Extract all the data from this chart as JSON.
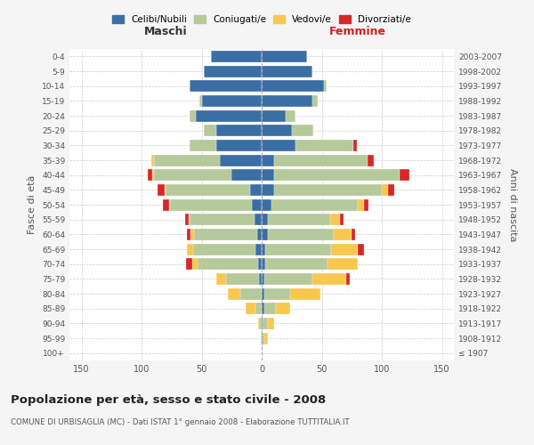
{
  "age_groups": [
    "100+",
    "95-99",
    "90-94",
    "85-89",
    "80-84",
    "75-79",
    "70-74",
    "65-69",
    "60-64",
    "55-59",
    "50-54",
    "45-49",
    "40-44",
    "35-39",
    "30-34",
    "25-29",
    "20-24",
    "15-19",
    "10-14",
    "5-9",
    "0-4"
  ],
  "birth_years": [
    "≤ 1907",
    "1908-1912",
    "1913-1917",
    "1918-1922",
    "1923-1927",
    "1928-1932",
    "1933-1937",
    "1938-1942",
    "1943-1947",
    "1948-1952",
    "1953-1957",
    "1958-1962",
    "1963-1967",
    "1968-1972",
    "1973-1977",
    "1978-1982",
    "1983-1987",
    "1988-1992",
    "1993-1997",
    "1998-2002",
    "2003-2007"
  ],
  "male": {
    "celibi": [
      0,
      0,
      0,
      0,
      0,
      2,
      3,
      5,
      4,
      6,
      8,
      10,
      25,
      35,
      38,
      38,
      55,
      50,
      60,
      48,
      42
    ],
    "coniugati": [
      0,
      1,
      2,
      5,
      18,
      28,
      50,
      52,
      52,
      54,
      68,
      70,
      65,
      55,
      22,
      10,
      5,
      2,
      0,
      0,
      0
    ],
    "vedovi": [
      0,
      0,
      1,
      8,
      10,
      8,
      5,
      5,
      3,
      1,
      1,
      1,
      1,
      2,
      0,
      0,
      0,
      0,
      0,
      0,
      0
    ],
    "divorziati": [
      0,
      0,
      0,
      0,
      0,
      0,
      5,
      0,
      3,
      3,
      5,
      6,
      4,
      0,
      0,
      0,
      0,
      0,
      0,
      0,
      0
    ]
  },
  "female": {
    "nubili": [
      0,
      0,
      1,
      2,
      2,
      2,
      3,
      3,
      5,
      5,
      8,
      10,
      10,
      10,
      28,
      25,
      20,
      42,
      52,
      42,
      38
    ],
    "coniugate": [
      0,
      2,
      4,
      10,
      22,
      40,
      52,
      55,
      55,
      52,
      72,
      90,
      105,
      78,
      48,
      18,
      8,
      5,
      2,
      0,
      0
    ],
    "vedove": [
      0,
      3,
      5,
      12,
      25,
      28,
      25,
      22,
      15,
      8,
      5,
      5,
      0,
      0,
      0,
      0,
      0,
      0,
      0,
      0,
      0
    ],
    "divorziate": [
      0,
      0,
      0,
      0,
      0,
      3,
      0,
      5,
      3,
      3,
      4,
      5,
      8,
      5,
      3,
      0,
      0,
      0,
      0,
      0,
      0
    ]
  },
  "colors": {
    "celibi": "#3b6ea5",
    "coniugati": "#b5c99a",
    "vedovi": "#f9c74f",
    "divorziati": "#d62828"
  },
  "xlim": 160,
  "title": "Popolazione per età, sesso e stato civile - 2008",
  "subtitle": "COMUNE DI URBISAGLIA (MC) - Dati ISTAT 1° gennaio 2008 - Elaborazione TUTTITALIA.IT",
  "ylabel_left": "Fasce di età",
  "ylabel_right": "Anni di nascita",
  "xlabel_left": "Maschi",
  "xlabel_right": "Femmine",
  "bg_color": "#f5f5f5",
  "plot_bg": "#ffffff"
}
